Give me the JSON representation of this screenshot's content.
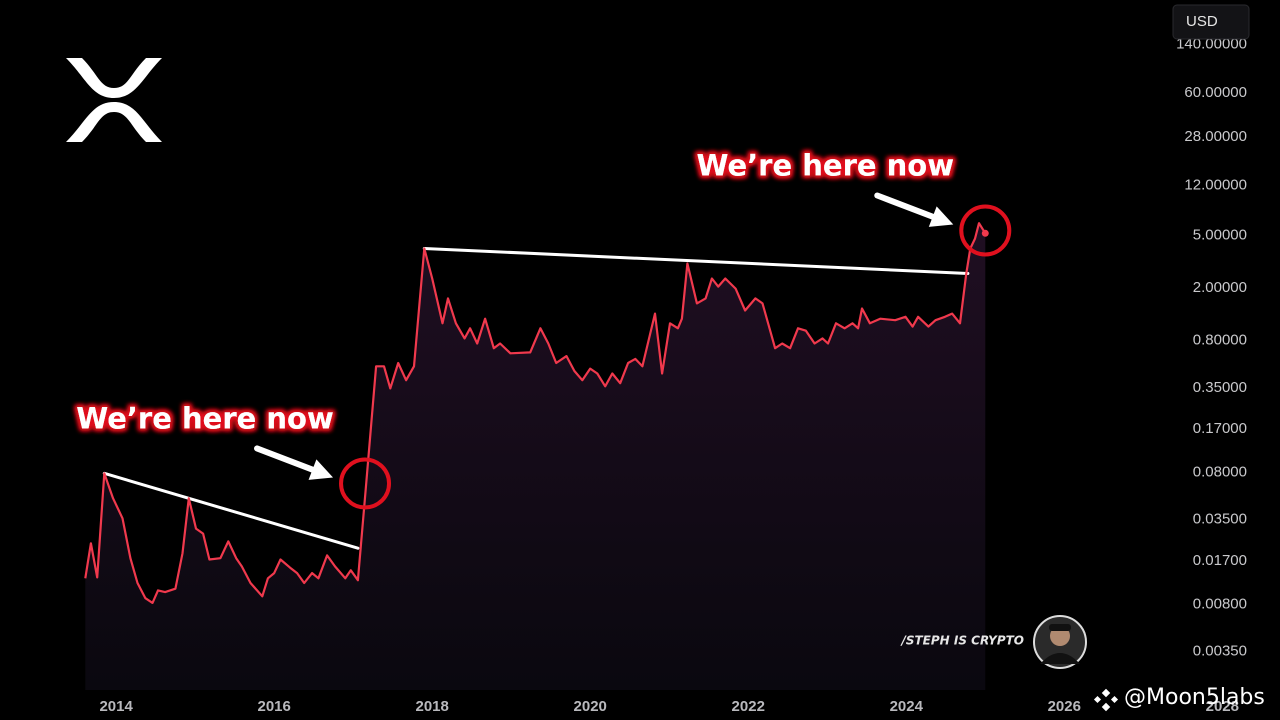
{
  "chart_data": {
    "type": "line",
    "currency": "USD",
    "credit": "/STEPH IS CRYPTO",
    "watermark": "@Moon5labs",
    "color": "#f0394d",
    "log_y": true,
    "grid": false,
    "xlim": [
      2012.53,
      2028.73
    ],
    "xticks": [
      2014,
      2016,
      2018,
      2020,
      2022,
      2024,
      2026,
      2028
    ],
    "ylim": [
      0.0012,
      300
    ],
    "yticks": [
      {
        "value": 140,
        "label": "140.00000"
      },
      {
        "value": 60,
        "label": "60.00000"
      },
      {
        "value": 28,
        "label": "28.00000"
      },
      {
        "value": 12,
        "label": "12.00000"
      },
      {
        "value": 5,
        "label": "5.00000"
      },
      {
        "value": 2,
        "label": "2.00000"
      },
      {
        "value": 0.8,
        "label": "0.80000"
      },
      {
        "value": 0.35,
        "label": "0.35000"
      },
      {
        "value": 0.17,
        "label": "0.17000"
      },
      {
        "value": 0.08,
        "label": "0.08000"
      },
      {
        "value": 0.035,
        "label": "0.03500"
      },
      {
        "value": 0.017,
        "label": "0.01700"
      },
      {
        "value": 0.008,
        "label": "0.00800"
      },
      {
        "value": 0.0035,
        "label": "0.00350"
      }
    ],
    "x": [
      2013.61,
      2013.68,
      2013.76,
      2013.85,
      2013.96,
      2014.08,
      2014.18,
      2014.27,
      2014.37,
      2014.46,
      2014.53,
      2014.62,
      2014.75,
      2014.84,
      2014.92,
      2015.01,
      2015.1,
      2015.18,
      2015.32,
      2015.42,
      2015.52,
      2015.59,
      2015.7,
      2015.85,
      2015.92,
      2016.0,
      2016.08,
      2016.2,
      2016.29,
      2016.38,
      2016.48,
      2016.56,
      2016.67,
      2016.77,
      2016.9,
      2016.97,
      2017.06,
      2017.16,
      2017.29,
      2017.39,
      2017.47,
      2017.57,
      2017.67,
      2017.77,
      2017.9,
      2018.0,
      2018.13,
      2018.2,
      2018.3,
      2018.41,
      2018.48,
      2018.57,
      2018.67,
      2018.78,
      2018.86,
      2018.99,
      2019.24,
      2019.37,
      2019.47,
      2019.57,
      2019.7,
      2019.8,
      2019.9,
      2020.0,
      2020.09,
      2020.19,
      2020.28,
      2020.38,
      2020.48,
      2020.57,
      2020.66,
      2020.82,
      2020.91,
      2021.01,
      2021.11,
      2021.16,
      2021.23,
      2021.35,
      2021.46,
      2021.54,
      2021.62,
      2021.71,
      2021.84,
      2021.96,
      2022.09,
      2022.18,
      2022.34,
      2022.43,
      2022.53,
      2022.63,
      2022.73,
      2022.84,
      2022.94,
      2023.01,
      2023.11,
      2023.22,
      2023.32,
      2023.39,
      2023.44,
      2023.54,
      2023.67,
      2023.86,
      2023.99,
      2024.08,
      2024.15,
      2024.28,
      2024.37,
      2024.49,
      2024.58,
      2024.68,
      2024.76,
      2024.81,
      2024.87,
      2024.92,
      2025.0
    ],
    "values": [
      0.0126,
      0.0232,
      0.0128,
      0.0787,
      0.051,
      0.0359,
      0.0179,
      0.0116,
      0.0089,
      0.0082,
      0.0102,
      0.0099,
      0.0105,
      0.0195,
      0.051,
      0.03,
      0.0275,
      0.0175,
      0.0179,
      0.024,
      0.0179,
      0.0155,
      0.0116,
      0.0092,
      0.0126,
      0.0138,
      0.0175,
      0.0152,
      0.0138,
      0.0116,
      0.0138,
      0.0126,
      0.0188,
      0.0155,
      0.0126,
      0.0145,
      0.0122,
      0.0606,
      0.51,
      0.51,
      0.347,
      0.54,
      0.4,
      0.51,
      3.99,
      2.36,
      1.08,
      1.67,
      1.08,
      0.83,
      0.99,
      0.76,
      1.17,
      0.7,
      0.76,
      0.64,
      0.65,
      0.99,
      0.76,
      0.54,
      0.61,
      0.47,
      0.4,
      0.49,
      0.45,
      0.36,
      0.45,
      0.38,
      0.54,
      0.58,
      0.51,
      1.28,
      0.45,
      1.08,
      0.99,
      1.17,
      3.07,
      1.53,
      1.67,
      2.36,
      2.05,
      2.36,
      1.98,
      1.35,
      1.67,
      1.53,
      0.7,
      0.76,
      0.7,
      0.99,
      0.95,
      0.76,
      0.83,
      0.76,
      1.08,
      0.99,
      1.08,
      0.99,
      1.4,
      1.08,
      1.17,
      1.14,
      1.21,
      1.02,
      1.21,
      1.02,
      1.14,
      1.21,
      1.28,
      1.08,
      2.58,
      3.99,
      4.74,
      6.2,
      5.2
    ],
    "trendlines": [
      {
        "x": [
          2013.85,
          2017.06
        ],
        "values": [
          0.0787,
          0.0213
        ],
        "color": "#ffffff"
      },
      {
        "x": [
          2017.9,
          2024.78
        ],
        "values": [
          3.99,
          2.58
        ],
        "color": "#ffffff"
      }
    ],
    "annotations": [
      {
        "text": "We’re here now",
        "x": 2017.15,
        "value": 0.066,
        "color": "#e0101e"
      },
      {
        "text": "We’re here now",
        "x": 2025.0,
        "value": 5.46,
        "color": "#e0101e"
      }
    ]
  }
}
